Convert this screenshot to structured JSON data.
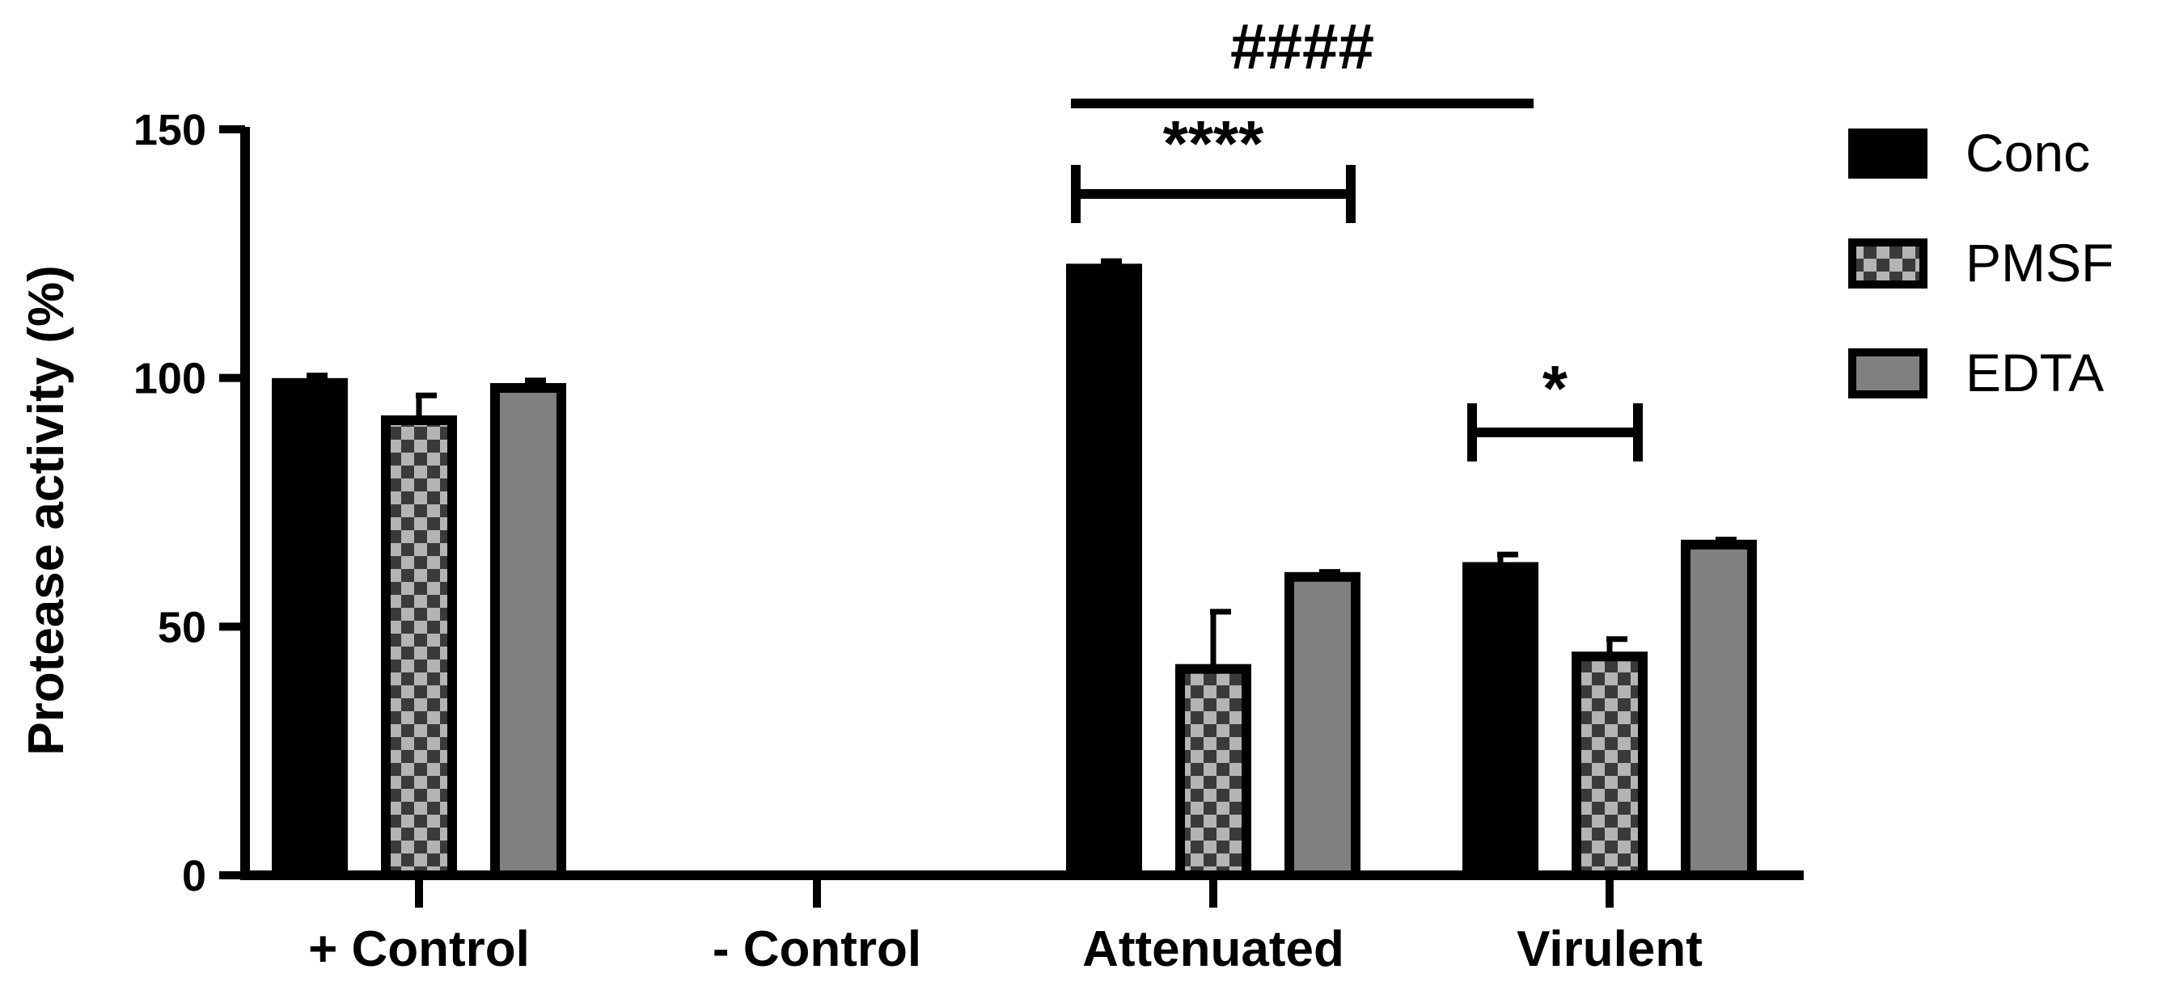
{
  "chart_data": {
    "type": "bar",
    "categories": [
      "+ Control",
      "- Control",
      "Attenuated",
      "Virulent"
    ],
    "ylabel": "Protease activity (%)",
    "xlabel": "",
    "title": "",
    "ylim": [
      0,
      150
    ],
    "yticks": [
      "0",
      "50",
      "100",
      "150"
    ],
    "ytick_values": [
      0,
      50,
      100,
      150
    ],
    "legend_position": "right",
    "grid": false,
    "series": [
      {
        "name": "Conc",
        "pattern": "solid",
        "color": "#000000",
        "values": [
          99,
          0,
          122,
          62
        ],
        "errors": [
          1.5,
          0,
          1.5,
          2.5
        ]
      },
      {
        "name": "PMSF",
        "pattern": "checker",
        "color": "#3a3a3a",
        "values": [
          91.5,
          0,
          41.5,
          44
        ],
        "errors": [
          5,
          0,
          11.5,
          3.5
        ]
      },
      {
        "name": "EDTA",
        "pattern": "gray",
        "color": "#808080",
        "values": [
          98,
          0,
          60,
          66.5
        ],
        "errors": [
          1.5,
          0,
          1,
          1
        ]
      }
    ],
    "annotations": [
      {
        "label": "####",
        "from": "Attenuated Conc",
        "to": "Virulent Conc"
      },
      {
        "label": "****",
        "from": "Attenuated Conc",
        "to": "Attenuated EDTA"
      },
      {
        "label": "*",
        "from": "Virulent Conc",
        "to": "Virulent PMSF"
      }
    ]
  }
}
